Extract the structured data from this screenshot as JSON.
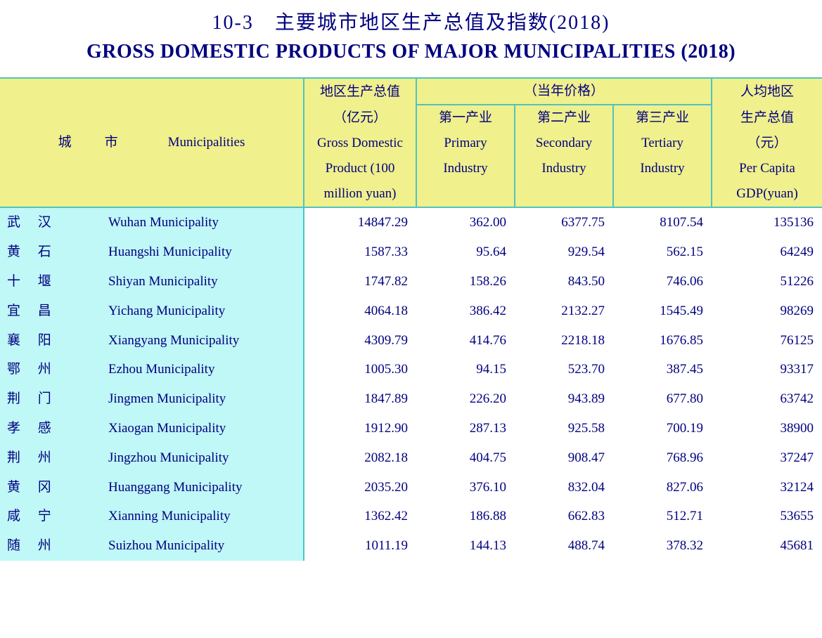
{
  "title": {
    "cn": "10-3　主要城市地区生产总值及指数(2018)",
    "en": "GROSS DOMESTIC PRODUCTS OF MAJOR MUNICIPALITIES (2018)"
  },
  "header": {
    "city_cn": "城　市",
    "muni_en": "Municipalities",
    "gdp_cn1": "地区生产总值",
    "gdp_cn2": "（亿元）",
    "gdp_en1": "Gross Domestic",
    "gdp_en2": "Product (100",
    "gdp_en3": "million yuan)",
    "current_price": "（当年价格）",
    "primary_cn": "第一产业",
    "primary_en1": "Primary",
    "primary_en2": "Industry",
    "secondary_cn": "第二产业",
    "secondary_en1": "Secondary",
    "secondary_en2": "Industry",
    "tertiary_cn": "第三产业",
    "tertiary_en1": "Tertiary",
    "tertiary_en2": "Industry",
    "percap_cn1": "人均地区",
    "percap_cn2": "生产总值",
    "percap_cn3": "（元）",
    "percap_en1": "Per Capita",
    "percap_en2": "GDP(yuan)"
  },
  "rows": [
    {
      "city": "武 汉",
      "muni": "Wuhan Municipality",
      "gdp": "14847.29",
      "p": "362.00",
      "s": "6377.75",
      "t": "8107.54",
      "pc": "135136"
    },
    {
      "city": "黄 石",
      "muni": "Huangshi Municipality",
      "gdp": "1587.33",
      "p": "95.64",
      "s": "929.54",
      "t": "562.15",
      "pc": "64249"
    },
    {
      "city": "十 堰",
      "muni": "Shiyan Municipality",
      "gdp": "1747.82",
      "p": "158.26",
      "s": "843.50",
      "t": "746.06",
      "pc": "51226"
    },
    {
      "city": "宜 昌",
      "muni": "Yichang Municipality",
      "gdp": "4064.18",
      "p": "386.42",
      "s": "2132.27",
      "t": "1545.49",
      "pc": "98269"
    },
    {
      "city": "襄 阳",
      "muni": "Xiangyang Municipality",
      "gdp": "4309.79",
      "p": "414.76",
      "s": "2218.18",
      "t": "1676.85",
      "pc": "76125"
    },
    {
      "city": "鄂 州",
      "muni": "Ezhou Municipality",
      "gdp": "1005.30",
      "p": "94.15",
      "s": "523.70",
      "t": "387.45",
      "pc": "93317"
    },
    {
      "city": "荆 门",
      "muni": "Jingmen Municipality",
      "gdp": "1847.89",
      "p": "226.20",
      "s": "943.89",
      "t": "677.80",
      "pc": "63742"
    },
    {
      "city": "孝 感",
      "muni": "Xiaogan Municipality",
      "gdp": "1912.90",
      "p": "287.13",
      "s": "925.58",
      "t": "700.19",
      "pc": "38900"
    },
    {
      "city": "荆 州",
      "muni": "Jingzhou Municipality",
      "gdp": "2082.18",
      "p": "404.75",
      "s": "908.47",
      "t": "768.96",
      "pc": "37247"
    },
    {
      "city": "黄 冈",
      "muni": "Huanggang Municipality",
      "gdp": "2035.20",
      "p": "376.10",
      "s": "832.04",
      "t": "827.06",
      "pc": "32124"
    },
    {
      "city": "咸 宁",
      "muni": "Xianning Municipality",
      "gdp": "1362.42",
      "p": "186.88",
      "s": "662.83",
      "t": "512.71",
      "pc": "53655"
    },
    {
      "city": "随 州",
      "muni": "Suizhou Municipality",
      "gdp": "1011.19",
      "p": "144.13",
      "s": "488.74",
      "t": "378.32",
      "pc": "45681"
    }
  ],
  "style": {
    "header_bg": "#f0f08c",
    "body_left_bg": "#c0f7f7",
    "body_num_bg": "#ffffff",
    "border_color": "#4fc4c0",
    "text_color": "#000080",
    "title_fontsize": 28,
    "header_fontsize": 19,
    "body_fontsize": 19
  }
}
